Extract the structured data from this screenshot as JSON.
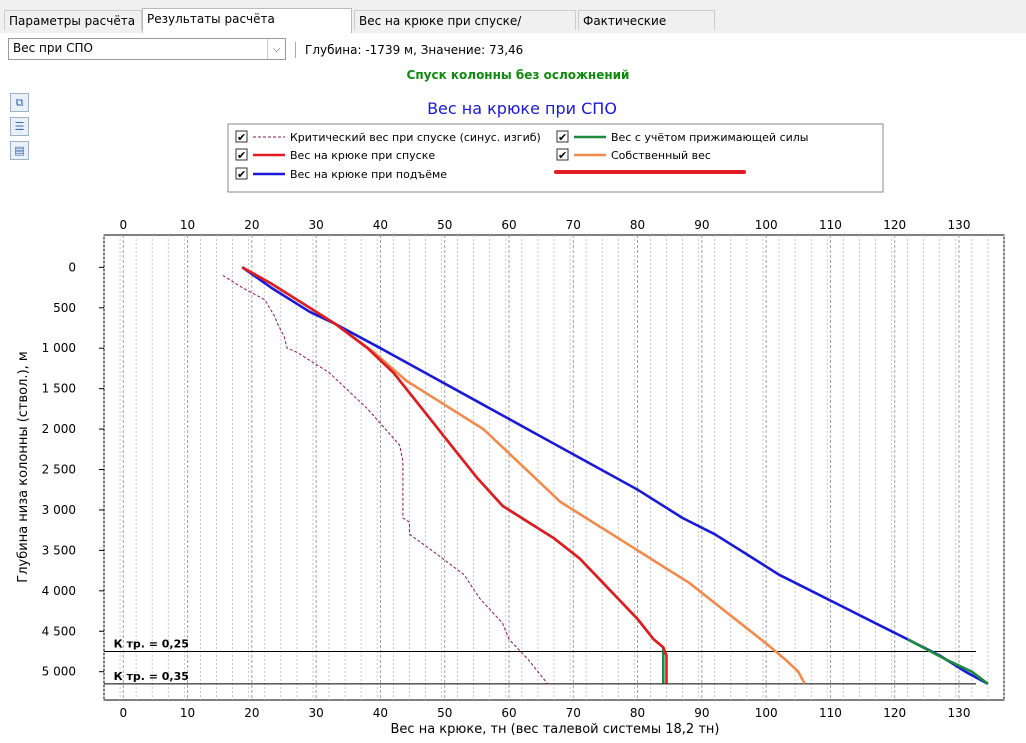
{
  "tabs": [
    {
      "label": "Параметры расчёта",
      "active": false
    },
    {
      "label": "Результаты расчёта (диаграммы)",
      "active": true
    },
    {
      "label": "Вес на крюке при спуске/подъёме",
      "active": false
    },
    {
      "label": "Фактические данные",
      "active": false
    }
  ],
  "toolbar": {
    "selector_value": "Вес при СПО",
    "status": "Глубина: -1739 м, Значение: 73,46"
  },
  "side_icons": [
    "copy-icon",
    "settings-list-icon",
    "save-icon"
  ],
  "chart_data": {
    "type": "line",
    "banner": "Спуск колонны без осложнений",
    "title": "Вес на крюке при СПО",
    "xlabel": "Вес на крюке, тн (вес талевой системы 18,2 тн)",
    "ylabel": "Глубина низа колонны (ствол.), м",
    "xlim": [
      -3,
      137
    ],
    "ylim": [
      -400,
      5350
    ],
    "y_inverted": true,
    "x_ticks": [
      0,
      10,
      20,
      30,
      40,
      50,
      60,
      70,
      80,
      90,
      100,
      110,
      120,
      130
    ],
    "x_tick_labels": [
      "0",
      "10",
      "20",
      "30",
      "40",
      "50",
      "60",
      "70",
      "80",
      "90",
      "100",
      "110",
      "120",
      "130"
    ],
    "y_ticks": [
      0,
      500,
      1000,
      1500,
      2000,
      2500,
      3000,
      3500,
      4000,
      4500,
      5000
    ],
    "y_tick_labels": [
      "0",
      "500",
      "1 000",
      "1 500",
      "2 000",
      "2 500",
      "3 000",
      "3 500",
      "4 000",
      "4 500",
      "5 000"
    ],
    "grid": "vertical-dashed",
    "legend_placement": "top",
    "series": [
      {
        "name": "Критический вес при спуске (синус. изгиб)",
        "color": "#8b1a4a",
        "style": "dashed",
        "checked": true,
        "x": [
          15.5,
          18.5,
          22,
          23.5,
          24,
          25,
          25.5,
          27,
          32,
          38,
          43,
          43.5,
          43.5,
          44.5,
          44.5,
          48,
          53,
          55.5,
          59,
          60,
          63,
          66
        ],
        "y": [
          100,
          250,
          400,
          600,
          700,
          850,
          1000,
          1050,
          1300,
          1750,
          2200,
          2400,
          3100,
          3150,
          3300,
          3500,
          3800,
          4100,
          4400,
          4600,
          4850,
          5150
        ]
      },
      {
        "name": "Вес на крюке при спуске",
        "color": "#e31b23",
        "style": "solid",
        "checked": true,
        "x": [
          18.5,
          23,
          28,
          33,
          38,
          42,
          46,
          48,
          51,
          55,
          59,
          63,
          67,
          71,
          74,
          77,
          80,
          82.5,
          84,
          84.5,
          84.5
        ],
        "y": [
          0,
          200,
          450,
          700,
          1000,
          1300,
          1700,
          1900,
          2200,
          2600,
          2950,
          3150,
          3350,
          3600,
          3850,
          4100,
          4350,
          4600,
          4700,
          4800,
          5150
        ]
      },
      {
        "name": "Вес с учётом прижимающей силы",
        "color": "#1e8a3e",
        "style": "solid",
        "checked": true,
        "x": [
          18.5,
          23,
          28,
          33,
          38,
          42,
          46,
          48,
          51,
          55,
          59,
          63,
          67,
          71,
          74,
          77,
          80,
          82.5,
          84,
          84,
          84,
          122,
          128,
          132,
          134.5
        ],
        "y": [
          0,
          200,
          450,
          700,
          1000,
          1300,
          1700,
          1900,
          2200,
          2600,
          2950,
          3150,
          3350,
          3600,
          3850,
          4100,
          4350,
          4600,
          4700,
          4800,
          5150,
          4600,
          4850,
          5000,
          5150
        ]
      },
      {
        "name": "Вес на крюке при подъёме",
        "color": "#1a1ad6",
        "style": "solid",
        "checked": true,
        "x": [
          18.5,
          23,
          29,
          33,
          40,
          48,
          56,
          64,
          72,
          80,
          87,
          92,
          97,
          102,
          107,
          112,
          117,
          122,
          127,
          131,
          134.5
        ],
        "y": [
          0,
          250,
          550,
          700,
          1000,
          1350,
          1700,
          2050,
          2400,
          2750,
          3100,
          3300,
          3550,
          3800,
          4000,
          4200,
          4400,
          4600,
          4800,
          5000,
          5150
        ]
      },
      {
        "name": "Собственный вес",
        "color": "#f28a4b",
        "style": "solid",
        "checked": true,
        "x": [
          33,
          39,
          44,
          50,
          56,
          60,
          64,
          68,
          72,
          76,
          80,
          84,
          88,
          92,
          96,
          100,
          103,
          105,
          106
        ],
        "y": [
          700,
          1050,
          1400,
          1700,
          2000,
          2300,
          2600,
          2900,
          3100,
          3300,
          3500,
          3700,
          3900,
          4150,
          4400,
          4650,
          4850,
          5000,
          5150
        ]
      }
    ],
    "hlines": [
      {
        "label": "К тр. = 0,25",
        "y": 4750
      },
      {
        "label": "К тр. = 0,35",
        "y": 5150
      }
    ]
  },
  "annotation": {
    "underline_color": "#e31b23"
  }
}
